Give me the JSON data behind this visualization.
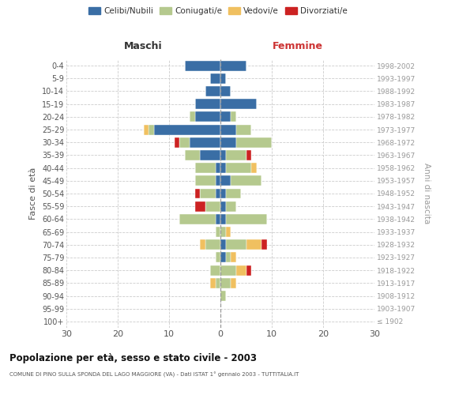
{
  "age_groups": [
    "100+",
    "95-99",
    "90-94",
    "85-89",
    "80-84",
    "75-79",
    "70-74",
    "65-69",
    "60-64",
    "55-59",
    "50-54",
    "45-49",
    "40-44",
    "35-39",
    "30-34",
    "25-29",
    "20-24",
    "15-19",
    "10-14",
    "5-9",
    "0-4"
  ],
  "birth_years": [
    "≤ 1902",
    "1903-1907",
    "1908-1912",
    "1913-1917",
    "1918-1922",
    "1923-1927",
    "1928-1932",
    "1933-1937",
    "1938-1942",
    "1943-1947",
    "1948-1952",
    "1953-1957",
    "1958-1962",
    "1963-1967",
    "1968-1972",
    "1973-1977",
    "1978-1982",
    "1983-1987",
    "1988-1992",
    "1993-1997",
    "1998-2002"
  ],
  "males": {
    "celibi": [
      0,
      0,
      0,
      0,
      0,
      0,
      0,
      0,
      1,
      0,
      1,
      1,
      1,
      4,
      6,
      13,
      5,
      5,
      3,
      2,
      7
    ],
    "coniugati": [
      0,
      0,
      0,
      1,
      2,
      1,
      3,
      1,
      7,
      3,
      3,
      4,
      4,
      3,
      2,
      1,
      1,
      0,
      0,
      0,
      0
    ],
    "vedovi": [
      0,
      0,
      0,
      1,
      0,
      0,
      1,
      0,
      0,
      0,
      0,
      0,
      0,
      0,
      0,
      1,
      0,
      0,
      0,
      0,
      0
    ],
    "divorziati": [
      0,
      0,
      0,
      0,
      0,
      0,
      0,
      0,
      0,
      2,
      1,
      0,
      0,
      0,
      1,
      0,
      0,
      0,
      0,
      0,
      0
    ]
  },
  "females": {
    "nubili": [
      0,
      0,
      0,
      0,
      0,
      1,
      1,
      0,
      1,
      1,
      1,
      2,
      1,
      1,
      3,
      3,
      2,
      7,
      2,
      1,
      5
    ],
    "coniugate": [
      0,
      0,
      1,
      2,
      3,
      1,
      4,
      1,
      8,
      2,
      3,
      6,
      5,
      4,
      7,
      3,
      1,
      0,
      0,
      0,
      0
    ],
    "vedove": [
      0,
      0,
      0,
      1,
      2,
      1,
      3,
      1,
      0,
      0,
      0,
      0,
      1,
      0,
      0,
      0,
      0,
      0,
      0,
      0,
      0
    ],
    "divorziate": [
      0,
      0,
      0,
      0,
      1,
      0,
      1,
      0,
      0,
      0,
      0,
      0,
      0,
      1,
      0,
      0,
      0,
      0,
      0,
      0,
      0
    ]
  },
  "colors": {
    "celibi": "#3a6ea5",
    "coniugati": "#b5c98e",
    "vedovi": "#f0c060",
    "divorziati": "#cc2222"
  },
  "xlim": 30,
  "title": "Popolazione per età, sesso e stato civile - 2003",
  "subtitle": "COMUNE DI PINO SULLA SPONDA DEL LAGO MAGGIORE (VA) - Dati ISTAT 1° gennaio 2003 - TUTTITALIA.IT",
  "ylabel_left": "Fasce di età",
  "ylabel_right": "Anni di nascita",
  "label_maschi": "Maschi",
  "label_femmine": "Femmine",
  "legend_labels": [
    "Celibi/Nubili",
    "Coniugati/e",
    "Vedovi/e",
    "Divorziati/e"
  ],
  "bg_color": "#ffffff",
  "grid_color": "#cccccc",
  "tick_color": "#555555",
  "bar_edge_color": "white"
}
